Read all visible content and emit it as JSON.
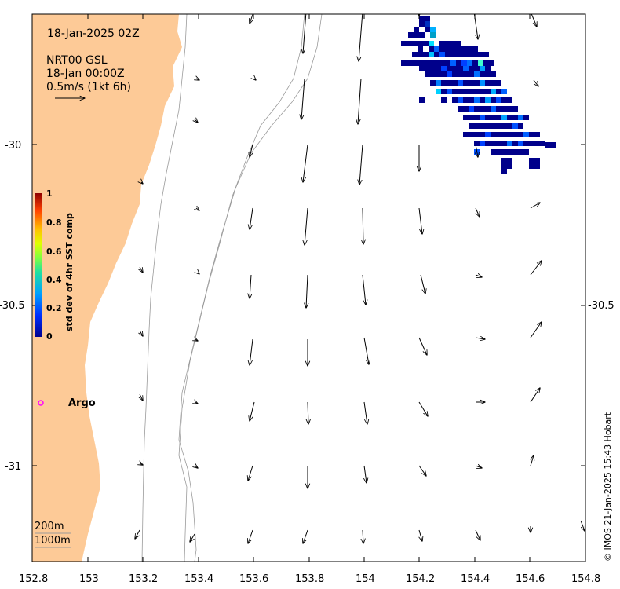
{
  "header": {
    "date": "18-Jan-2025 02Z",
    "product": "NRT00 GSL",
    "time": "18-Jan 00:00Z",
    "scale_label": "0.5m/s (1kt 6h)"
  },
  "colorbar": {
    "label": "std dev of 4hr SST comp",
    "ticks": [
      "1",
      "0.8",
      "0.6",
      "0.4",
      "0.2",
      "0"
    ],
    "colors": [
      "#00008f",
      "#0050ff",
      "#00c0ff",
      "#40ff80",
      "#c0ff00",
      "#ffc000",
      "#ff4000",
      "#8f0000"
    ]
  },
  "argo": {
    "label": "Argo",
    "marker_color": "#ff00ff"
  },
  "contours": {
    "c200": "200m",
    "c1000": "1000m"
  },
  "axes": {
    "x_ticks": [
      "152.8",
      "153",
      "153.2",
      "153.4",
      "153.6",
      "153.8",
      "154",
      "154.2",
      "154.4",
      "154.6",
      "154.8"
    ],
    "y_ticks": [
      "-30",
      "-30.5",
      "-31"
    ]
  },
  "credit": "© IMOS 21-Jan-2025 15:43 Hobart",
  "colors": {
    "land": "#fdca97",
    "ocean": "#ffffff",
    "sst_main": "#00008b"
  }
}
